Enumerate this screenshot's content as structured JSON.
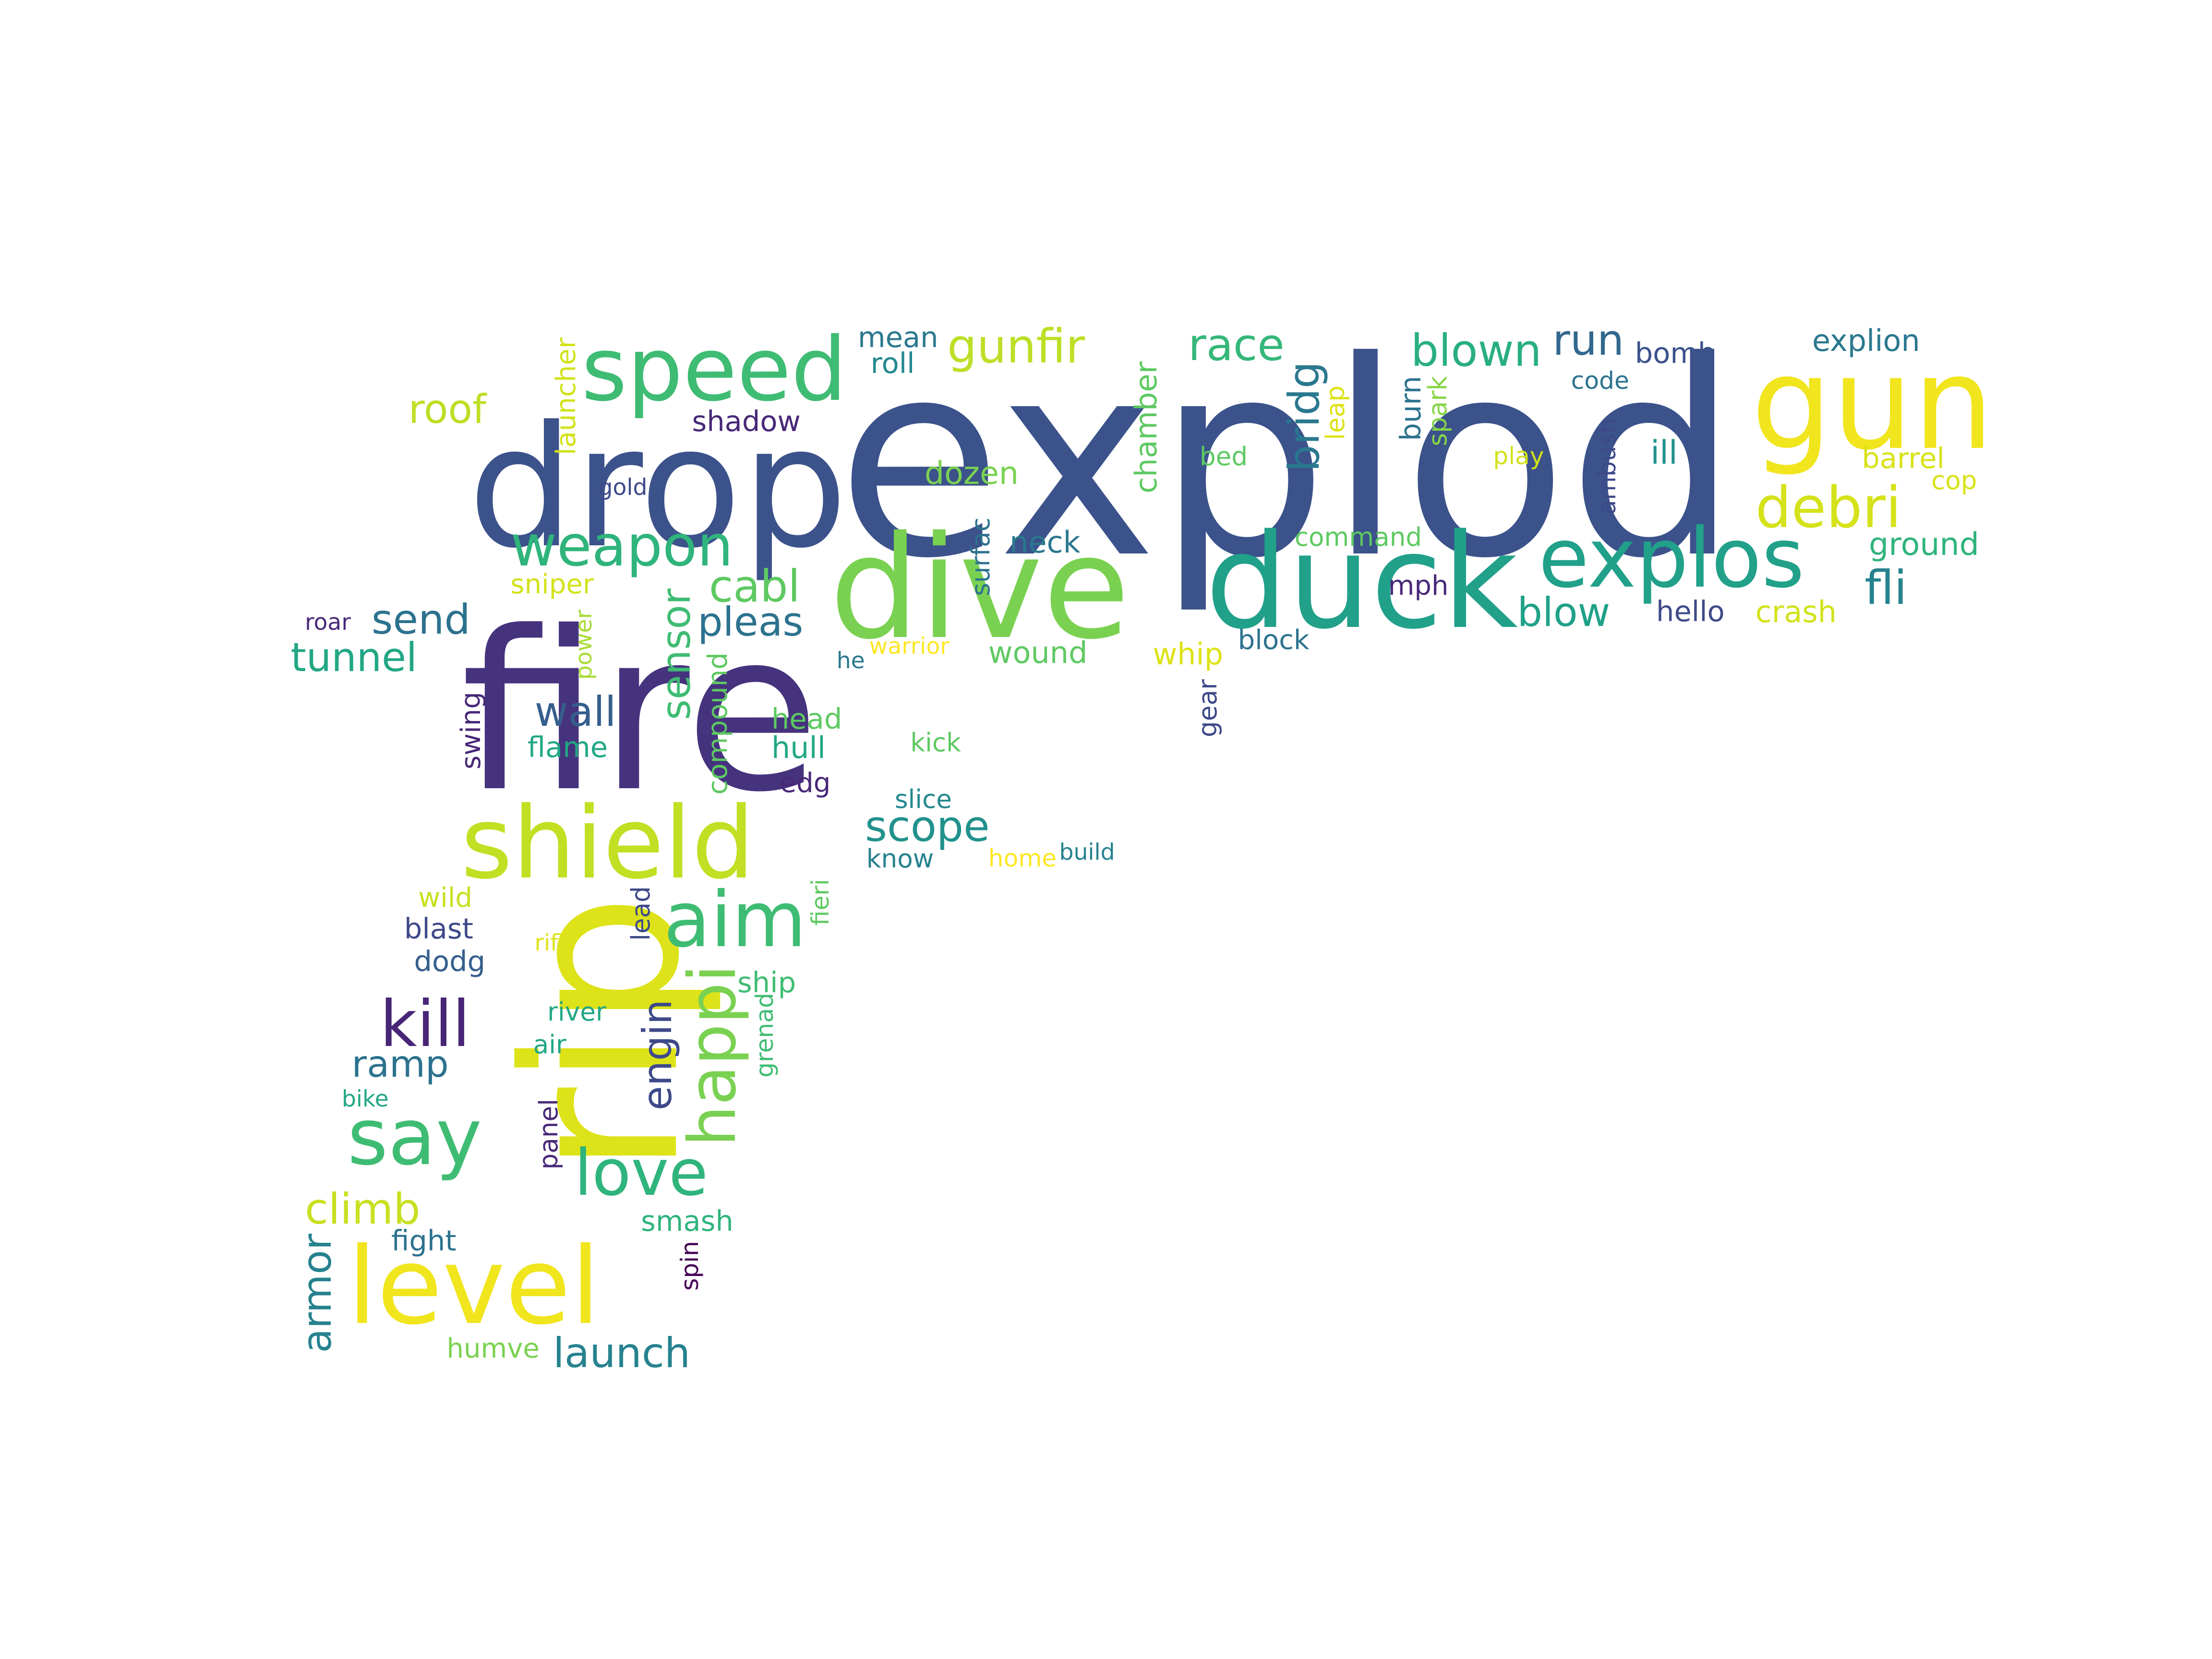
{
  "words": [
    {
      "text": "explod",
      "color": "#3b528b"
    },
    {
      "text": "fire",
      "color": "#46337e"
    },
    {
      "text": "drop",
      "color": "#3b528b"
    },
    {
      "text": "dive",
      "color": "#7ad151"
    },
    {
      "text": "duck",
      "color": "#21a08a"
    },
    {
      "text": "gun",
      "color": "#f1e51d"
    },
    {
      "text": "speed",
      "color": "#3fbc73"
    },
    {
      "text": "shield",
      "color": "#c2df23"
    },
    {
      "text": "rip",
      "color": "#dde318"
    },
    {
      "text": "level",
      "color": "#f1e51d"
    },
    {
      "text": "explos",
      "color": "#21a08a"
    },
    {
      "text": "weapon",
      "color": "#2fb47c"
    },
    {
      "text": "debri",
      "color": "#d5e21a"
    },
    {
      "text": "aim",
      "color": "#3fbc73"
    },
    {
      "text": "say",
      "color": "#3fbc73"
    },
    {
      "text": "love",
      "color": "#2fb47c"
    },
    {
      "text": "kill",
      "color": "#482576"
    },
    {
      "text": "happi",
      "color": "#7ad151"
    },
    {
      "text": "gunfir",
      "color": "#bddf26"
    },
    {
      "text": "race",
      "color": "#35b779"
    },
    {
      "text": "blown",
      "color": "#29af7f"
    },
    {
      "text": "run",
      "color": "#31688e"
    },
    {
      "text": "bridg",
      "color": "#2a788e"
    },
    {
      "text": "cabl",
      "color": "#5ec962"
    },
    {
      "text": "pleas",
      "color": "#2c728e"
    },
    {
      "text": "sensor",
      "color": "#3fbc73"
    },
    {
      "text": "scope",
      "color": "#21918c"
    },
    {
      "text": "blow",
      "color": "#1fa188"
    },
    {
      "text": "fli",
      "color": "#26828e"
    },
    {
      "text": "send",
      "color": "#2c728e"
    },
    {
      "text": "tunnel",
      "color": "#22a785"
    },
    {
      "text": "wall",
      "color": "#355f8d"
    },
    {
      "text": "roof",
      "color": "#bddf26"
    },
    {
      "text": "climb",
      "color": "#c8e020"
    },
    {
      "text": "engin",
      "color": "#3e4989"
    },
    {
      "text": "ramp",
      "color": "#2c728e"
    },
    {
      "text": "launch",
      "color": "#26828e"
    },
    {
      "text": "armor",
      "color": "#26828e"
    },
    {
      "text": "explion",
      "color": "#2a788e"
    },
    {
      "text": "mean",
      "color": "#2a788e"
    },
    {
      "text": "roll",
      "color": "#23888e"
    },
    {
      "text": "shadow",
      "color": "#482878"
    },
    {
      "text": "dozen",
      "color": "#7ad151"
    },
    {
      "text": "neck",
      "color": "#2a788e"
    },
    {
      "text": "bomb",
      "color": "#3b528b"
    },
    {
      "text": "code",
      "color": "#2c728e"
    },
    {
      "text": "ill",
      "color": "#21918c"
    },
    {
      "text": "barrel",
      "color": "#d8e219"
    },
    {
      "text": "cop",
      "color": "#d8e219"
    },
    {
      "text": "ground",
      "color": "#2fb47c"
    },
    {
      "text": "crash",
      "color": "#d2e21b"
    },
    {
      "text": "hello",
      "color": "#3e4a89"
    },
    {
      "text": "mph",
      "color": "#482878"
    },
    {
      "text": "command",
      "color": "#5ec962"
    },
    {
      "text": "block",
      "color": "#2c728e"
    },
    {
      "text": "whip",
      "color": "#dde318"
    },
    {
      "text": "wound",
      "color": "#5ec962"
    },
    {
      "text": "warrior",
      "color": "#fde725"
    },
    {
      "text": "he",
      "color": "#2a788e"
    },
    {
      "text": "power",
      "color": "#a8db34"
    },
    {
      "text": "roar",
      "color": "#482878"
    },
    {
      "text": "sniper",
      "color": "#d2e21b"
    },
    {
      "text": "launcher",
      "color": "#d2e21b"
    },
    {
      "text": "gold",
      "color": "#3e4989"
    },
    {
      "text": "surfac",
      "color": "#2c728e"
    },
    {
      "text": "chamber",
      "color": "#5ec962"
    },
    {
      "text": "bed",
      "color": "#5ec962"
    },
    {
      "text": "leap",
      "color": "#dde318"
    },
    {
      "text": "burn",
      "color": "#2c728e"
    },
    {
      "text": "spark",
      "color": "#86d549"
    },
    {
      "text": "play",
      "color": "#d2e21b"
    },
    {
      "text": "ambush",
      "color": "#3e4989"
    },
    {
      "text": "gear",
      "color": "#3e4989"
    },
    {
      "text": "swing",
      "color": "#482878"
    },
    {
      "text": "flame",
      "color": "#22a785"
    },
    {
      "text": "compound",
      "color": "#5ec962"
    },
    {
      "text": "head",
      "color": "#5ec962"
    },
    {
      "text": "hull",
      "color": "#22a785"
    },
    {
      "text": "kick",
      "color": "#5ec962"
    },
    {
      "text": "edg",
      "color": "#482878"
    },
    {
      "text": "slice",
      "color": "#23888e"
    },
    {
      "text": "know",
      "color": "#26828e"
    },
    {
      "text": "home",
      "color": "#fde725"
    },
    {
      "text": "build",
      "color": "#26828e"
    },
    {
      "text": "wild",
      "color": "#c8e020"
    },
    {
      "text": "blast",
      "color": "#3e4989"
    },
    {
      "text": "dodg",
      "color": "#355f8d"
    },
    {
      "text": "rifl",
      "color": "#dde318"
    },
    {
      "text": "lead",
      "color": "#3e4989"
    },
    {
      "text": "fieri",
      "color": "#5ec962"
    },
    {
      "text": "ship",
      "color": "#3fbc73"
    },
    {
      "text": "river",
      "color": "#22a785"
    },
    {
      "text": "air",
      "color": "#22a785"
    },
    {
      "text": "grenad",
      "color": "#3fbc73"
    },
    {
      "text": "bike",
      "color": "#22a785"
    },
    {
      "text": "panel",
      "color": "#482878"
    },
    {
      "text": "smash",
      "color": "#2fb47c"
    },
    {
      "text": "fight",
      "color": "#2c728e"
    },
    {
      "text": "spin",
      "color": "#440154"
    },
    {
      "text": "humve",
      "color": "#7ad151"
    }
  ]
}
